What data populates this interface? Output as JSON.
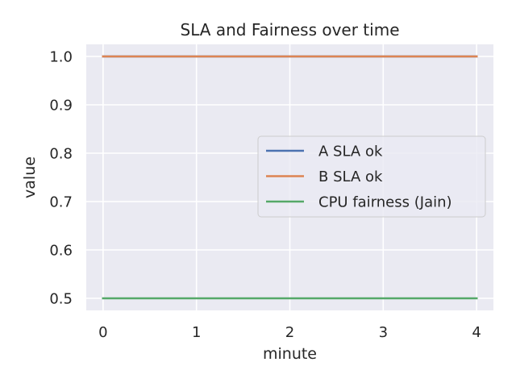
{
  "chart_data": {
    "type": "line",
    "title": "SLA and Fairness over time",
    "xlabel": "minute",
    "ylabel": "value",
    "x": [
      0,
      1,
      2,
      3,
      4
    ],
    "xlim": [
      -0.18,
      4.18
    ],
    "ylim": [
      0.475,
      1.025
    ],
    "xticks": [
      0,
      1,
      2,
      3,
      4
    ],
    "yticks": [
      0.5,
      0.6,
      0.7,
      0.8,
      0.9,
      1.0
    ],
    "ytick_labels": [
      "0.5",
      "0.6",
      "0.7",
      "0.8",
      "0.9",
      "1.0"
    ],
    "grid": true,
    "legend_position": "center-right",
    "series": [
      {
        "name": "A SLA ok",
        "color": "#4c72b0",
        "values": [
          1.0,
          1.0,
          1.0,
          1.0,
          1.0
        ]
      },
      {
        "name": "B SLA ok",
        "color": "#dd8452",
        "values": [
          1.0,
          1.0,
          1.0,
          1.0,
          1.0
        ]
      },
      {
        "name": "CPU fairness (Jain)",
        "color": "#55a868",
        "values": [
          0.5,
          0.5,
          0.5,
          0.5,
          0.5
        ]
      }
    ]
  },
  "colors": {
    "plot_background": "#eaeaf2",
    "grid": "#ffffff"
  }
}
